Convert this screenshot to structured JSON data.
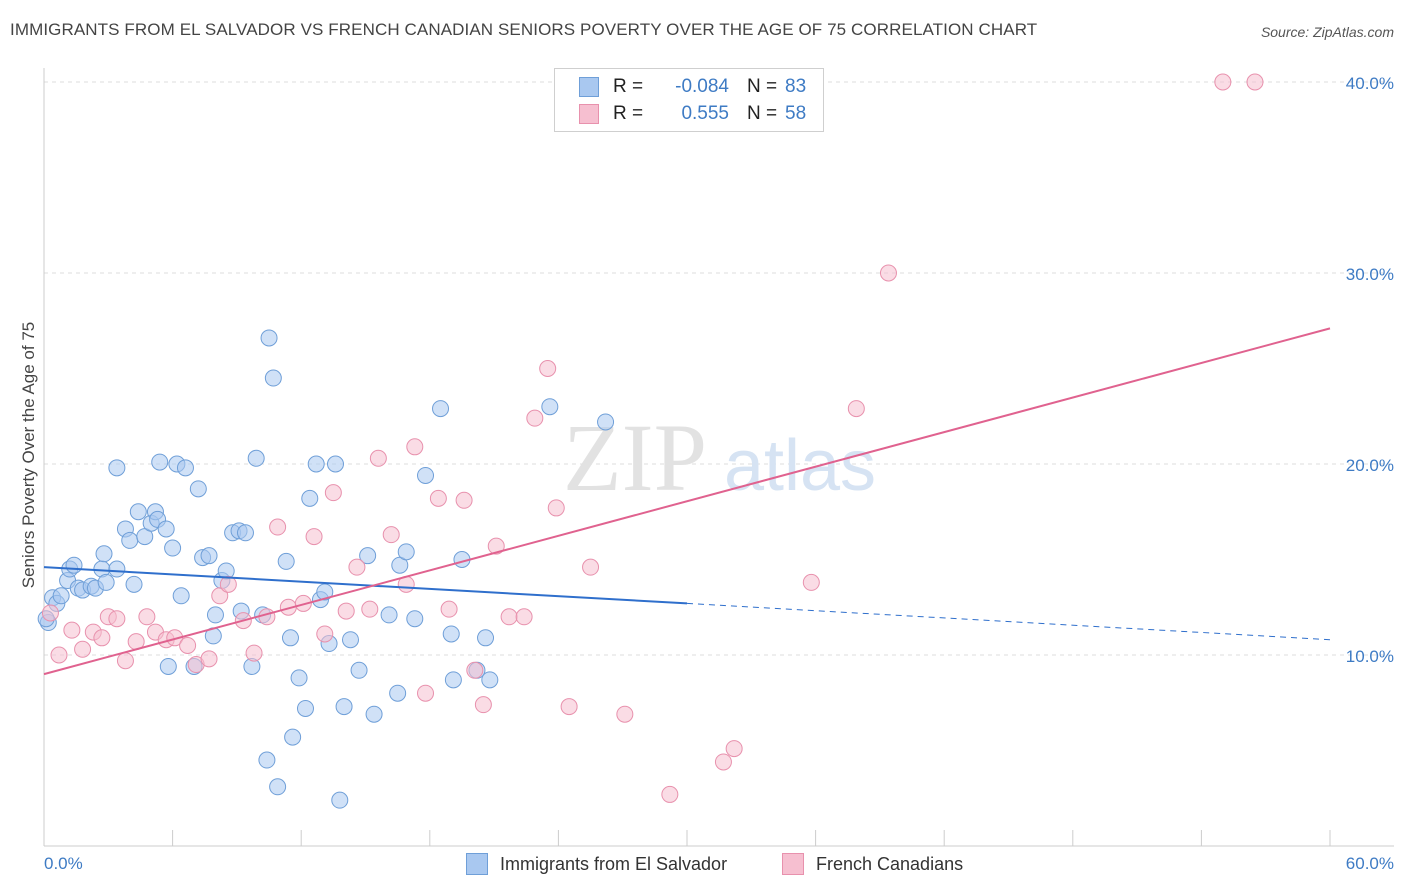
{
  "title": "IMMIGRANTS FROM EL SALVADOR VS FRENCH CANADIAN SENIORS POVERTY OVER THE AGE OF 75 CORRELATION CHART",
  "source": "Source: ZipAtlas.com",
  "watermark": {
    "zip": "ZIP",
    "atlas": "atlas"
  },
  "legend": {
    "rows": [
      {
        "r_label": "R =",
        "r_value": "-0.084",
        "n_label": "N =",
        "n_value": "83"
      },
      {
        "r_label": "R =",
        "r_value": "0.555",
        "n_label": "N =",
        "n_value": "58"
      }
    ]
  },
  "bottom_legend": [
    "Immigrants from El Salvador",
    "French Canadians"
  ],
  "colors": {
    "blue_fill": "#a9c8f0",
    "blue_stroke": "#6f9fd8",
    "blue_line": "#2f6fcc",
    "pink_fill": "#f6bfd0",
    "pink_stroke": "#e891ad",
    "pink_line": "#e0628f",
    "tick_text": "#3e7bc4",
    "grid": "#dddddd"
  },
  "chart_data": {
    "type": "scatter",
    "xlabel": "",
    "ylabel": "Seniors Poverty Over the Age of 75",
    "xlim": [
      0,
      60
    ],
    "ylim": [
      0,
      41
    ],
    "x_tick_labels": [
      "0.0%",
      "60.0%"
    ],
    "y_ticks": [
      10,
      20,
      30,
      40
    ],
    "y_tick_labels": [
      "10.0%",
      "20.0%",
      "30.0%",
      "40.0%"
    ],
    "grid": true,
    "series": [
      {
        "name": "Immigrants from El Salvador",
        "color": "#a9c8f0",
        "trend": {
          "x": [
            0,
            30
          ],
          "y": [
            14.6,
            12.7
          ],
          "dashed_to": [
            60,
            10.8
          ]
        },
        "points": [
          [
            0.2,
            11.7
          ],
          [
            0.4,
            13.0
          ],
          [
            0.6,
            12.7
          ],
          [
            0.8,
            13.1
          ],
          [
            1.1,
            13.9
          ],
          [
            1.2,
            14.5
          ],
          [
            1.4,
            14.7
          ],
          [
            1.6,
            13.5
          ],
          [
            1.8,
            13.4
          ],
          [
            2.2,
            13.6
          ],
          [
            2.4,
            13.5
          ],
          [
            2.7,
            14.5
          ],
          [
            2.8,
            15.3
          ],
          [
            2.9,
            13.8
          ],
          [
            3.4,
            14.5
          ],
          [
            3.4,
            19.8
          ],
          [
            3.8,
            16.6
          ],
          [
            4.0,
            16.0
          ],
          [
            4.2,
            13.7
          ],
          [
            4.4,
            17.5
          ],
          [
            4.7,
            16.2
          ],
          [
            5.0,
            16.9
          ],
          [
            5.2,
            17.5
          ],
          [
            5.3,
            17.1
          ],
          [
            5.4,
            20.1
          ],
          [
            5.7,
            16.6
          ],
          [
            5.8,
            9.4
          ],
          [
            6.0,
            15.6
          ],
          [
            6.2,
            20.0
          ],
          [
            6.4,
            13.1
          ],
          [
            6.6,
            19.8
          ],
          [
            7.0,
            9.4
          ],
          [
            7.2,
            18.7
          ],
          [
            7.4,
            15.1
          ],
          [
            7.7,
            15.2
          ],
          [
            7.9,
            11.0
          ],
          [
            8.0,
            12.1
          ],
          [
            8.3,
            13.9
          ],
          [
            8.5,
            14.4
          ],
          [
            8.8,
            16.4
          ],
          [
            9.1,
            16.5
          ],
          [
            9.2,
            12.3
          ],
          [
            9.4,
            16.4
          ],
          [
            9.7,
            9.4
          ],
          [
            9.9,
            20.3
          ],
          [
            10.2,
            12.1
          ],
          [
            10.4,
            4.5
          ],
          [
            10.5,
            26.6
          ],
          [
            10.7,
            24.5
          ],
          [
            10.9,
            3.1
          ],
          [
            11.3,
            14.9
          ],
          [
            11.5,
            10.9
          ],
          [
            11.6,
            5.7
          ],
          [
            11.9,
            8.8
          ],
          [
            12.2,
            7.2
          ],
          [
            12.4,
            18.2
          ],
          [
            12.7,
            20.0
          ],
          [
            12.9,
            12.9
          ],
          [
            13.1,
            13.3
          ],
          [
            13.3,
            10.6
          ],
          [
            13.6,
            20.0
          ],
          [
            13.8,
            2.4
          ],
          [
            14.0,
            7.3
          ],
          [
            14.3,
            10.8
          ],
          [
            14.7,
            9.2
          ],
          [
            15.1,
            15.2
          ],
          [
            15.4,
            6.9
          ],
          [
            16.1,
            12.1
          ],
          [
            16.5,
            8.0
          ],
          [
            16.6,
            14.7
          ],
          [
            16.9,
            15.4
          ],
          [
            17.3,
            11.9
          ],
          [
            17.8,
            19.4
          ],
          [
            18.5,
            22.9
          ],
          [
            19.0,
            11.1
          ],
          [
            19.1,
            8.7
          ],
          [
            19.5,
            15.0
          ],
          [
            20.2,
            9.2
          ],
          [
            20.6,
            10.9
          ],
          [
            20.8,
            8.7
          ],
          [
            23.6,
            23.0
          ],
          [
            26.2,
            22.2
          ],
          [
            0.1,
            11.9
          ]
        ]
      },
      {
        "name": "French Canadians",
        "color": "#f6bfd0",
        "trend": {
          "x": [
            0,
            60
          ],
          "y": [
            9.0,
            27.1
          ]
        },
        "points": [
          [
            0.3,
            12.2
          ],
          [
            0.7,
            10.0
          ],
          [
            1.3,
            11.3
          ],
          [
            1.8,
            10.3
          ],
          [
            2.3,
            11.2
          ],
          [
            2.7,
            10.9
          ],
          [
            3.0,
            12.0
          ],
          [
            3.4,
            11.9
          ],
          [
            3.8,
            9.7
          ],
          [
            4.3,
            10.7
          ],
          [
            4.8,
            12.0
          ],
          [
            5.2,
            11.2
          ],
          [
            5.7,
            10.8
          ],
          [
            6.1,
            10.9
          ],
          [
            6.7,
            10.5
          ],
          [
            7.1,
            9.5
          ],
          [
            7.7,
            9.8
          ],
          [
            8.2,
            13.1
          ],
          [
            8.6,
            13.7
          ],
          [
            9.3,
            11.8
          ],
          [
            9.8,
            10.1
          ],
          [
            10.4,
            12.0
          ],
          [
            10.9,
            16.7
          ],
          [
            11.4,
            12.5
          ],
          [
            12.1,
            12.7
          ],
          [
            12.6,
            16.2
          ],
          [
            13.1,
            11.1
          ],
          [
            13.5,
            18.5
          ],
          [
            14.1,
            12.3
          ],
          [
            14.6,
            14.6
          ],
          [
            15.2,
            12.4
          ],
          [
            15.6,
            20.3
          ],
          [
            16.2,
            16.3
          ],
          [
            16.9,
            13.7
          ],
          [
            17.3,
            20.9
          ],
          [
            17.8,
            8.0
          ],
          [
            18.4,
            18.2
          ],
          [
            18.9,
            12.4
          ],
          [
            19.6,
            18.1
          ],
          [
            20.1,
            9.2
          ],
          [
            20.5,
            7.4
          ],
          [
            21.1,
            15.7
          ],
          [
            21.7,
            12.0
          ],
          [
            22.4,
            12.0
          ],
          [
            22.9,
            22.4
          ],
          [
            23.5,
            25.0
          ],
          [
            23.9,
            17.7
          ],
          [
            24.5,
            7.3
          ],
          [
            25.5,
            14.6
          ],
          [
            27.1,
            6.9
          ],
          [
            29.2,
            2.7
          ],
          [
            31.7,
            4.4
          ],
          [
            32.2,
            5.1
          ],
          [
            35.8,
            13.8
          ],
          [
            37.9,
            22.9
          ],
          [
            39.4,
            30.0
          ],
          [
            55.0,
            40.0
          ],
          [
            56.5,
            40.0
          ]
        ]
      }
    ]
  }
}
